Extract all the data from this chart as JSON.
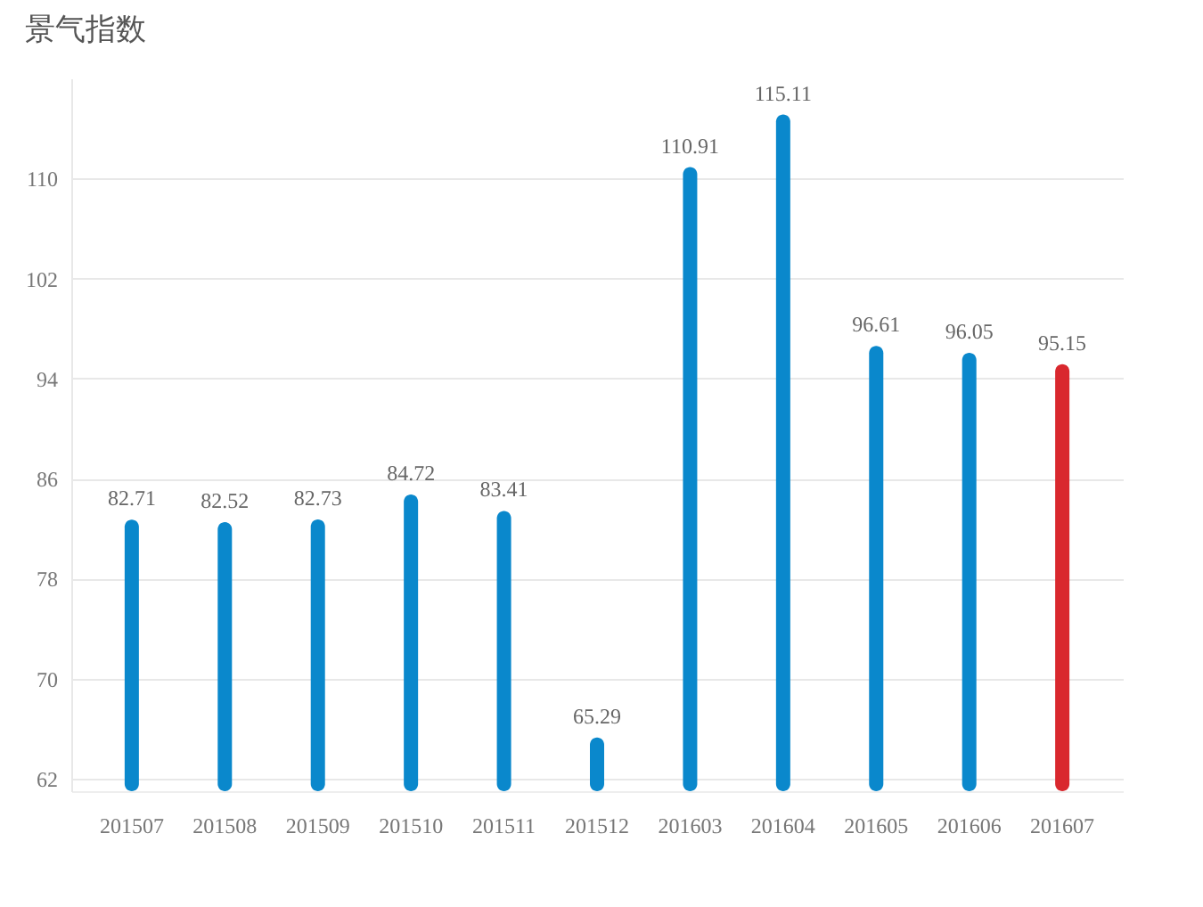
{
  "chart_data": {
    "type": "bar",
    "title": "景气指数",
    "categories": [
      "201507",
      "201508",
      "201509",
      "201510",
      "201511",
      "201512",
      "201603",
      "201604",
      "201605",
      "201606",
      "201607"
    ],
    "values": [
      82.71,
      82.52,
      82.73,
      84.72,
      83.41,
      65.29,
      110.91,
      115.11,
      96.61,
      96.05,
      95.15
    ],
    "colors": [
      "#0a88cc",
      "#0a88cc",
      "#0a88cc",
      "#0a88cc",
      "#0a88cc",
      "#0a88cc",
      "#0a88cc",
      "#0a88cc",
      "#0a88cc",
      "#0a88cc",
      "#d9282e"
    ],
    "ylim": [
      61,
      118
    ],
    "yticks": [
      62,
      70,
      78,
      86,
      94,
      102,
      110
    ],
    "grid": "y",
    "data_labels": true
  }
}
